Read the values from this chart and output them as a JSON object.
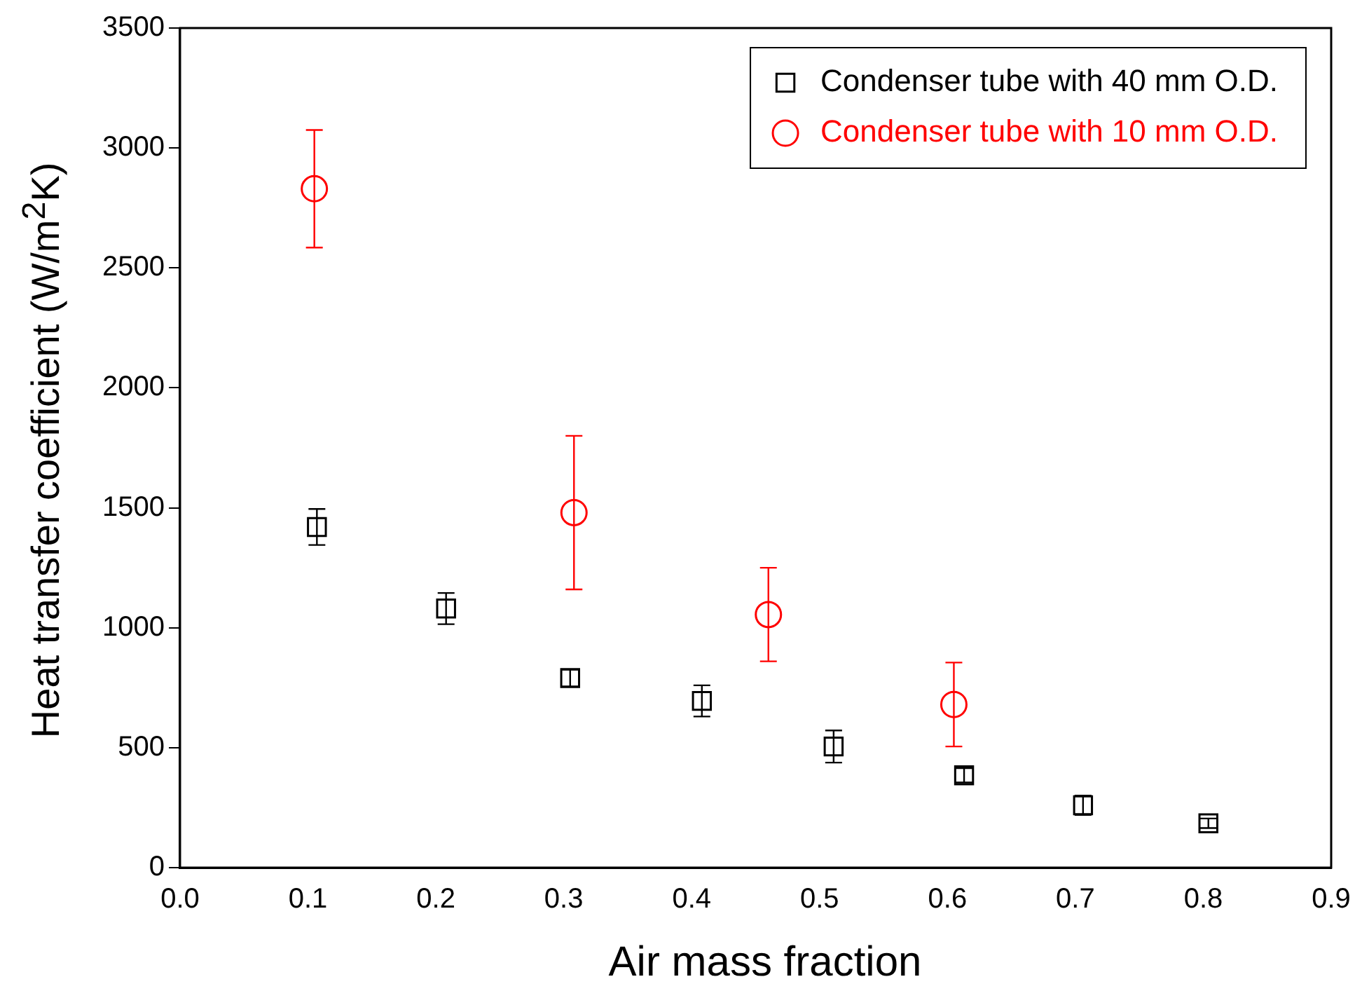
{
  "chart_data": {
    "type": "scatter",
    "xlabel": "Air mass fraction",
    "ylabel": "Heat transfer coefficient (W/m$^{2}$K)",
    "xlim": [
      0,
      0.9
    ],
    "xticks": [
      {
        "value": 0,
        "label": "0.0"
      },
      0.1,
      0.2,
      0.3,
      0.4,
      0.5,
      0.6,
      0.7,
      0.8,
      0.9
    ],
    "ylim": [
      0,
      3500
    ],
    "yticks": [
      0,
      500,
      1000,
      1500,
      2000,
      2500,
      3000,
      3500
    ],
    "grid": false,
    "legend": "top right",
    "series": [
      {
        "name": "Condenser tube with 40 mm O.D.",
        "color": "#000000",
        "marker": "square",
        "x": [
          0.107,
          0.208,
          0.305,
          0.408,
          0.511,
          0.613,
          0.706,
          0.804
        ],
        "values": [
          1420,
          1080,
          790,
          695,
          505,
          385,
          260,
          185
        ],
        "errors": [
          75,
          65,
          35,
          65,
          67,
          30,
          40,
          20
        ]
      },
      {
        "name": "Condenser tube with 10 mm O.D.",
        "color": "#ff0000",
        "marker": "circle",
        "x": [
          0.105,
          0.308,
          0.46,
          0.605
        ],
        "values": [
          2830,
          1480,
          1055,
          680
        ],
        "errors": [
          245,
          320,
          195,
          175
        ]
      }
    ]
  }
}
